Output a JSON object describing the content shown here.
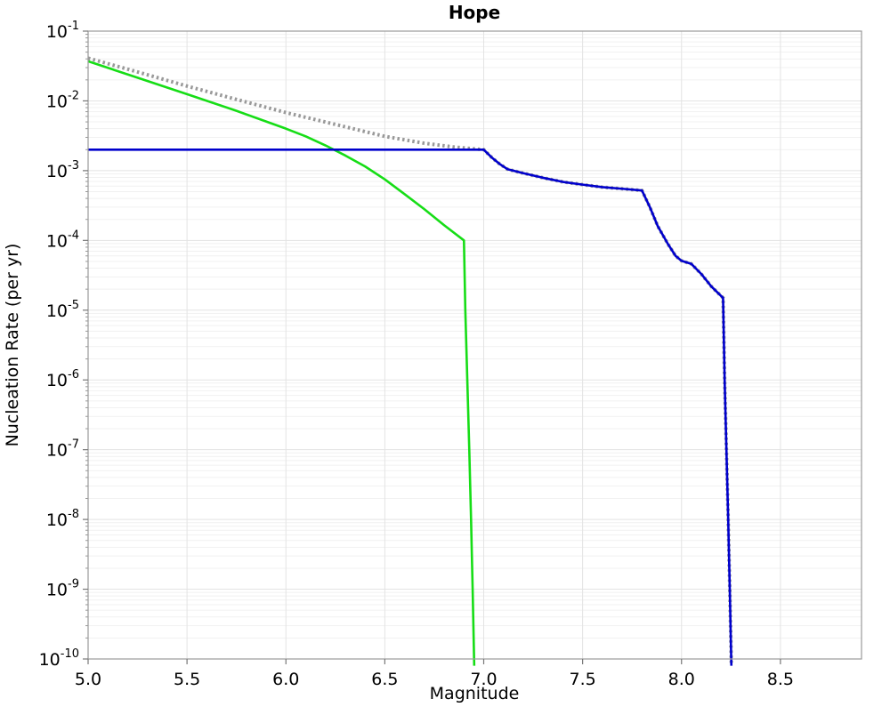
{
  "title": "Hope",
  "chart_data": {
    "type": "line",
    "title": "Hope",
    "xlabel": "Magnitude",
    "ylabel": "Nucleation Rate (per yr)",
    "xlim": [
      5.0,
      8.91
    ],
    "ylog": true,
    "ylim": [
      1e-10,
      0.1
    ],
    "y_tick_exponents": [
      -1,
      -2,
      -3,
      -4,
      -5,
      -6,
      -7,
      -8,
      -9,
      -10
    ],
    "x_ticks": [
      5.0,
      5.5,
      6.0,
      6.5,
      7.0,
      7.5,
      8.0,
      8.5
    ],
    "grid": true,
    "legend": "none",
    "grid_major_color": "#e3e3e3",
    "grid_minor_color": "#f1f1f1",
    "spine_color": "#9a9a9a",
    "series": [
      {
        "name": "gray-dotted-envelope",
        "color": "#999999",
        "style": "dotted",
        "width": 4,
        "points": [
          [
            5.0,
            0.041
          ],
          [
            5.25,
            0.026
          ],
          [
            5.5,
            0.0163
          ],
          [
            5.75,
            0.0105
          ],
          [
            6.0,
            0.0068
          ],
          [
            6.25,
            0.0046
          ],
          [
            6.5,
            0.0031
          ],
          [
            6.7,
            0.00247
          ],
          [
            6.85,
            0.00218
          ],
          [
            7.0,
            0.002
          ],
          [
            7.04,
            0.00155
          ],
          [
            7.08,
            0.00125
          ],
          [
            7.12,
            0.00105
          ],
          [
            7.2,
            0.00092
          ],
          [
            7.3,
            0.00079
          ],
          [
            7.4,
            0.00069
          ],
          [
            7.5,
            0.00063
          ],
          [
            7.6,
            0.00058
          ],
          [
            7.7,
            0.00055
          ],
          [
            7.8,
            0.00052
          ],
          [
            7.84,
            0.0003
          ],
          [
            7.88,
            0.00016
          ],
          [
            7.93,
            9e-05
          ],
          [
            7.97,
            6e-05
          ],
          [
            8.0,
            5.1e-05
          ],
          [
            8.05,
            4.6e-05
          ],
          [
            8.1,
            3.3e-05
          ],
          [
            8.15,
            2.2e-05
          ],
          [
            8.2,
            1.6e-05
          ],
          [
            8.21,
            1.5e-05
          ],
          [
            8.218,
            1e-06
          ],
          [
            8.227,
            1e-07
          ],
          [
            8.236,
            1e-08
          ],
          [
            8.244,
            1e-09
          ],
          [
            8.252,
            8e-11
          ]
        ]
      },
      {
        "name": "green-solid-curve",
        "color": "#16dd16",
        "style": "solid",
        "width": 2.6,
        "points": [
          [
            5.0,
            0.037
          ],
          [
            5.25,
            0.0215
          ],
          [
            5.5,
            0.0125
          ],
          [
            5.75,
            0.0072
          ],
          [
            6.0,
            0.004
          ],
          [
            6.1,
            0.0031
          ],
          [
            6.2,
            0.0023
          ],
          [
            6.3,
            0.00165
          ],
          [
            6.4,
            0.00115
          ],
          [
            6.5,
            0.00075
          ],
          [
            6.6,
            0.00046
          ],
          [
            6.7,
            0.00028
          ],
          [
            6.8,
            0.000165
          ],
          [
            6.9,
            0.0001
          ],
          [
            6.907,
            1e-05
          ],
          [
            6.917,
            1e-06
          ],
          [
            6.927,
            1e-07
          ],
          [
            6.936,
            1e-08
          ],
          [
            6.944,
            1e-09
          ],
          [
            6.952,
            8e-11
          ]
        ]
      },
      {
        "name": "blue-solid-curve",
        "color": "#0000cc",
        "style": "solid",
        "width": 2.6,
        "points": [
          [
            5.0,
            0.002
          ],
          [
            7.0,
            0.002
          ],
          [
            7.04,
            0.00155
          ],
          [
            7.08,
            0.00125
          ],
          [
            7.12,
            0.00105
          ],
          [
            7.2,
            0.00092
          ],
          [
            7.3,
            0.00079
          ],
          [
            7.4,
            0.00069
          ],
          [
            7.5,
            0.00063
          ],
          [
            7.6,
            0.00058
          ],
          [
            7.7,
            0.00055
          ],
          [
            7.8,
            0.00052
          ],
          [
            7.84,
            0.0003
          ],
          [
            7.88,
            0.00016
          ],
          [
            7.93,
            9e-05
          ],
          [
            7.97,
            6e-05
          ],
          [
            8.0,
            5.1e-05
          ],
          [
            8.05,
            4.6e-05
          ],
          [
            8.1,
            3.3e-05
          ],
          [
            8.15,
            2.2e-05
          ],
          [
            8.2,
            1.6e-05
          ],
          [
            8.21,
            1.5e-05
          ],
          [
            8.218,
            1e-06
          ],
          [
            8.227,
            1e-07
          ],
          [
            8.236,
            1e-08
          ],
          [
            8.244,
            1e-09
          ],
          [
            8.252,
            8e-11
          ]
        ]
      }
    ]
  }
}
